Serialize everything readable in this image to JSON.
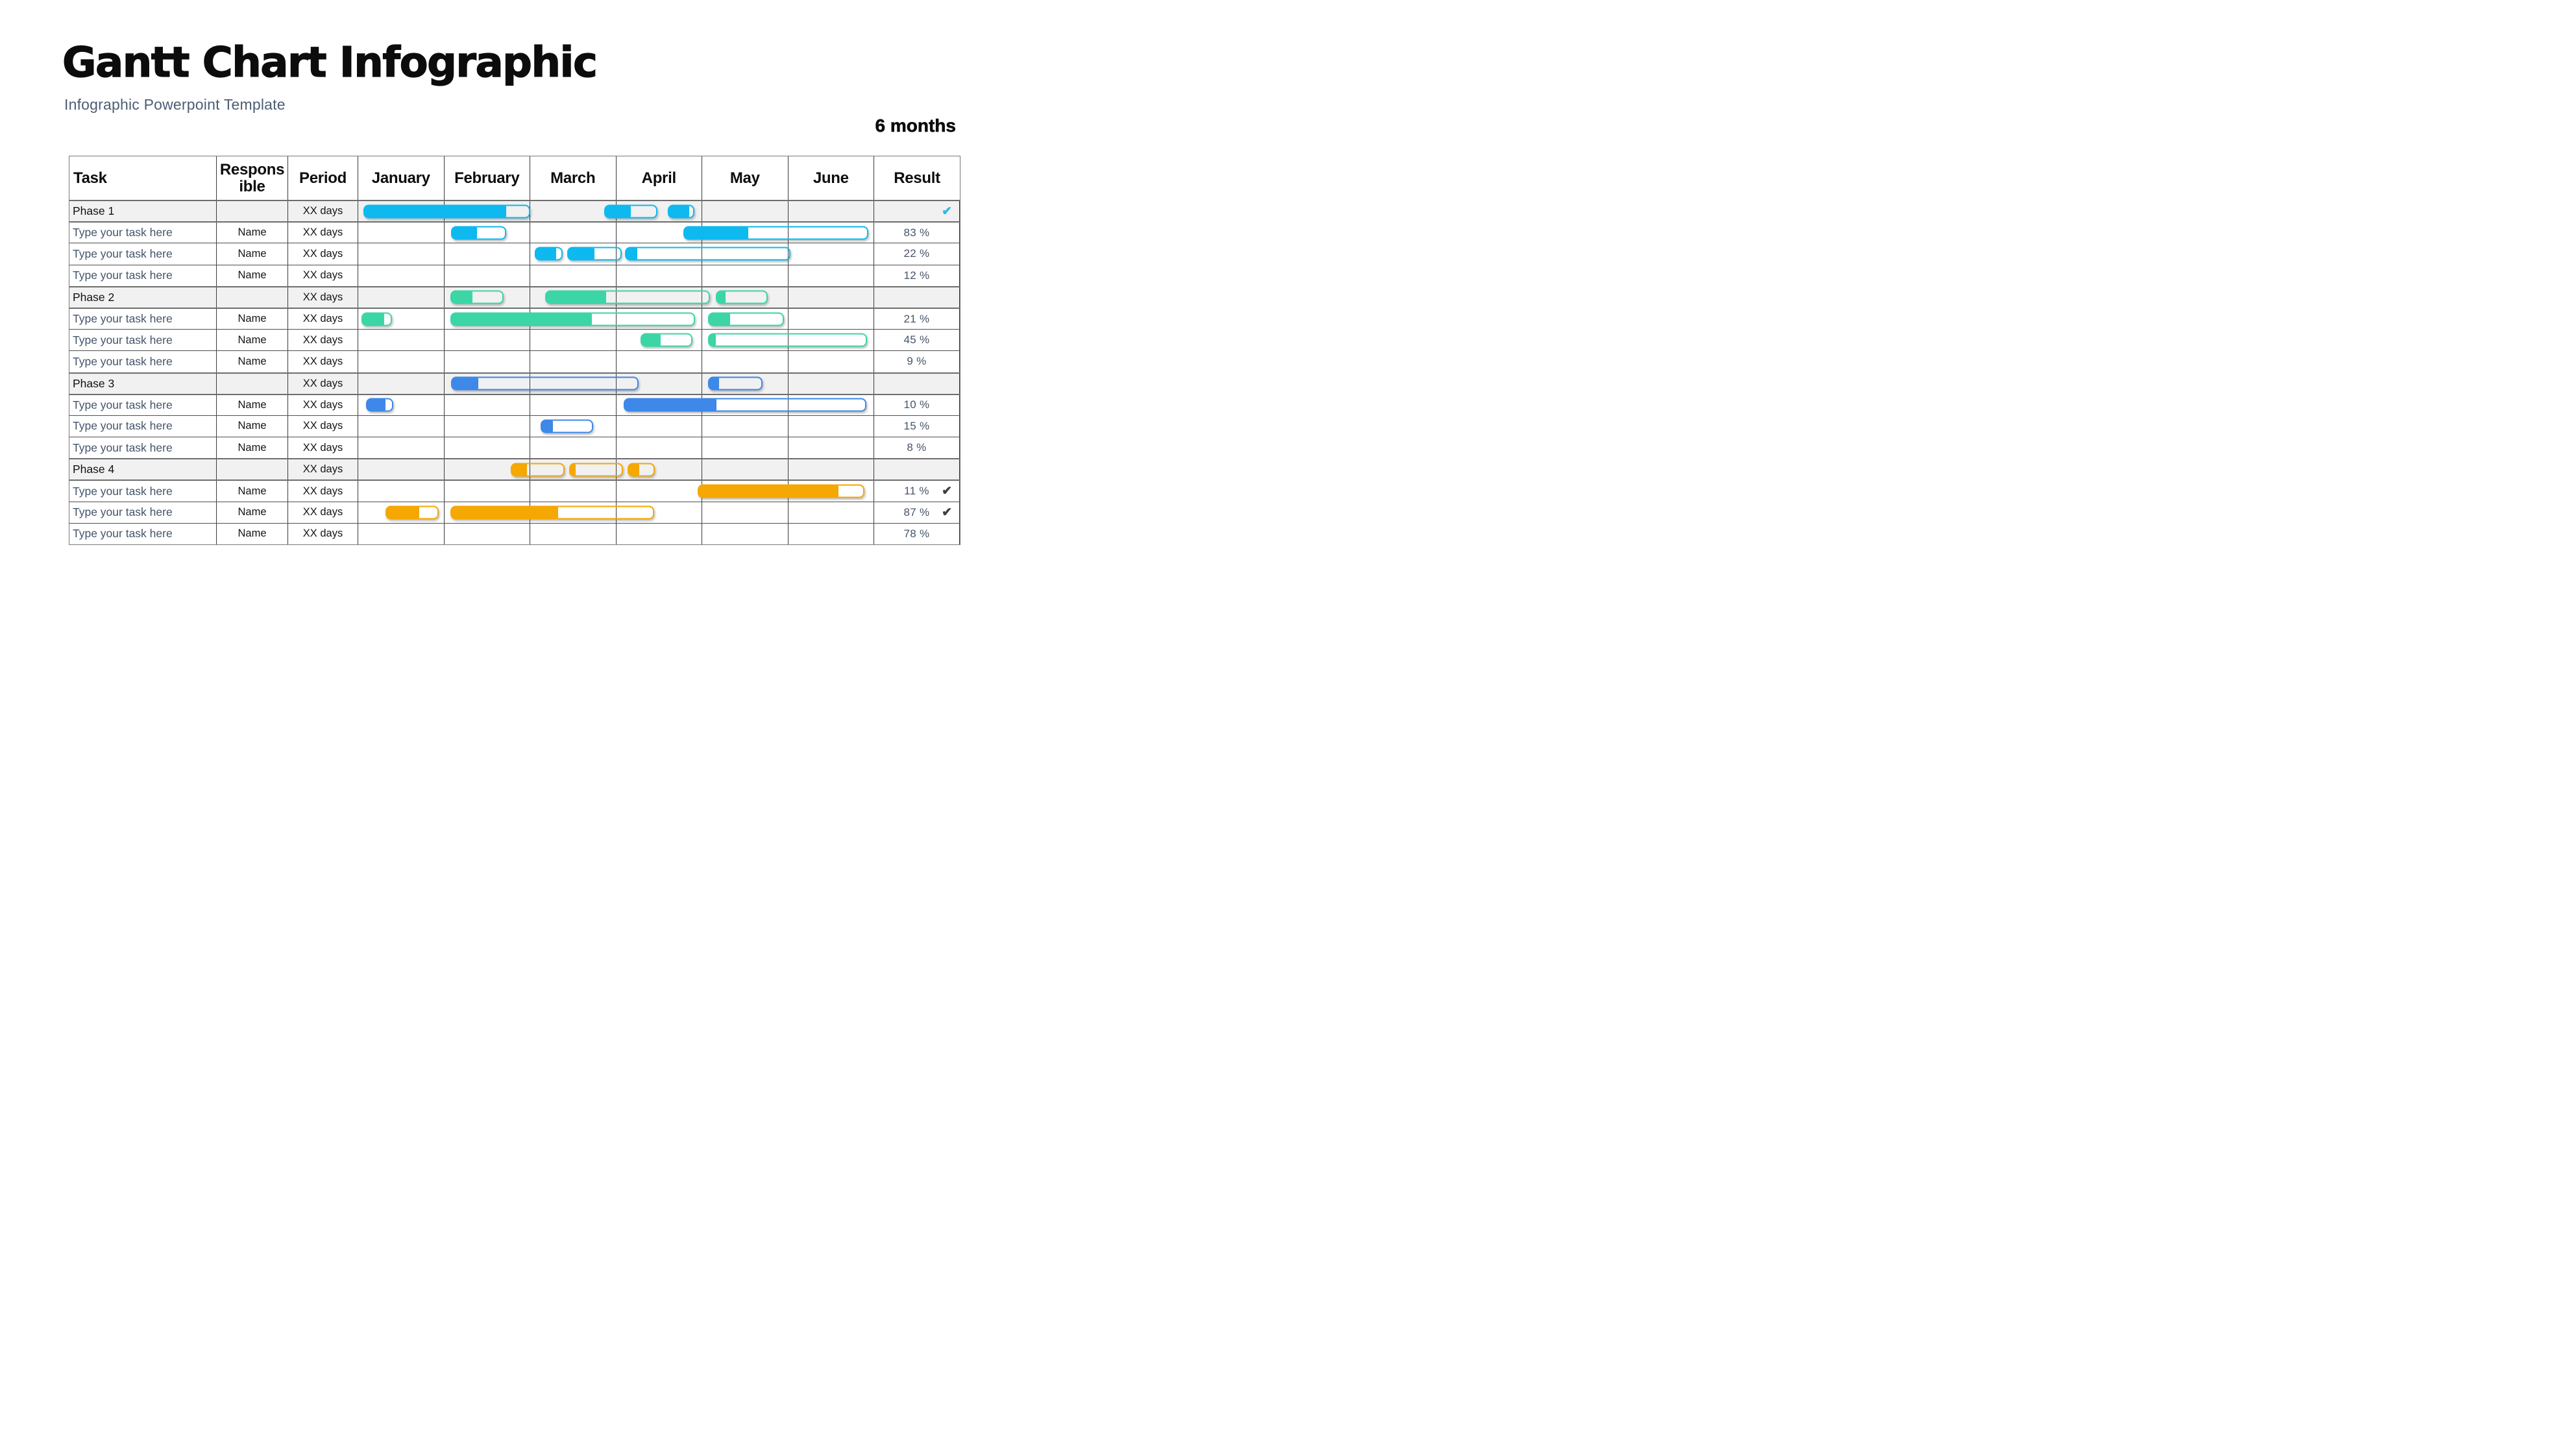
{
  "page": {
    "title": "Gantt Chart Infographic",
    "subtitle": "Infographic Powerpoint Template",
    "duration_label": "6 months"
  },
  "icons": {
    "check": "✔"
  },
  "palette": {
    "phase1": "#0db9ee",
    "phase2": "#3bd5a6",
    "phase3": "#3d88e8",
    "phase4": "#f5a702",
    "check_cyan": "#2eb8e6",
    "check_dark": "#3f3f3f",
    "phase_row_bg": "#f1f1f1",
    "task_text": "#44546a"
  },
  "chart_data": {
    "type": "gantt",
    "title": "Gantt Chart Infographic",
    "duration": "6 months",
    "columns": [
      "Task",
      "Responsible",
      "Period",
      "January",
      "February",
      "March",
      "April",
      "May",
      "June",
      "Result"
    ],
    "months": [
      "January",
      "February",
      "March",
      "April",
      "May",
      "June"
    ],
    "x_axis_unit": "months",
    "x_range": [
      0,
      6
    ],
    "bar_note": "start/end are in months from January 1 (0-6); fill is completed fraction of the bar",
    "rows": [
      {
        "kind": "phase",
        "label": "Phase 1",
        "responsible": "",
        "period": "XX days",
        "color": "phase1",
        "result": "",
        "check": "cyan",
        "bars": [
          {
            "start": 0.06,
            "end": 2.0,
            "fill": 0.86
          },
          {
            "start": 2.86,
            "end": 3.48,
            "fill": 0.5
          },
          {
            "start": 3.6,
            "end": 3.91,
            "fill": 0.83
          }
        ]
      },
      {
        "kind": "task",
        "label": "Type your task here",
        "responsible": "Name",
        "period": "XX days",
        "color": "phase1",
        "result": "83 %",
        "check": null,
        "bars": [
          {
            "start": 1.08,
            "end": 1.72,
            "fill": 0.47
          },
          {
            "start": 3.78,
            "end": 5.93,
            "fill": 0.35
          }
        ]
      },
      {
        "kind": "task",
        "label": "Type your task here",
        "responsible": "Name",
        "period": "XX days",
        "color": "phase1",
        "result": "22 %",
        "check": null,
        "bars": [
          {
            "start": 2.05,
            "end": 2.38,
            "fill": 0.78
          },
          {
            "start": 2.43,
            "end": 3.06,
            "fill": 0.5
          },
          {
            "start": 3.1,
            "end": 5.03,
            "fill": 0.07
          }
        ]
      },
      {
        "kind": "task",
        "label": "Type your task here",
        "responsible": "Name",
        "period": "XX days",
        "color": "phase1",
        "result": "12 %",
        "check": null,
        "bars": []
      },
      {
        "kind": "phase",
        "label": "Phase 2",
        "responsible": "",
        "period": "XX days",
        "color": "phase2",
        "result": "",
        "check": null,
        "bars": [
          {
            "start": 1.07,
            "end": 1.69,
            "fill": 0.41
          },
          {
            "start": 2.17,
            "end": 4.09,
            "fill": 0.37
          },
          {
            "start": 4.16,
            "end": 4.76,
            "fill": 0.17
          }
        ]
      },
      {
        "kind": "task",
        "label": "Type your task here",
        "responsible": "Name",
        "period": "XX days",
        "color": "phase2",
        "result": "21 %",
        "check": null,
        "bars": [
          {
            "start": 0.04,
            "end": 0.39,
            "fill": 0.77
          },
          {
            "start": 1.07,
            "end": 3.92,
            "fill": 0.58
          },
          {
            "start": 4.07,
            "end": 4.95,
            "fill": 0.28
          }
        ]
      },
      {
        "kind": "task",
        "label": "Type your task here",
        "responsible": "Name",
        "period": "XX days",
        "color": "phase2",
        "result": "45 %",
        "check": null,
        "bars": [
          {
            "start": 3.28,
            "end": 3.89,
            "fill": 0.38
          },
          {
            "start": 4.07,
            "end": 5.92,
            "fill": 0.04
          }
        ]
      },
      {
        "kind": "task",
        "label": "Type your task here",
        "responsible": "Name",
        "period": "XX days",
        "color": "phase2",
        "result": "9 %",
        "check": null,
        "bars": []
      },
      {
        "kind": "phase",
        "label": "Phase 3",
        "responsible": "",
        "period": "XX days",
        "color": "phase3",
        "result": "",
        "check": null,
        "bars": [
          {
            "start": 1.08,
            "end": 3.26,
            "fill": 0.14
          },
          {
            "start": 4.07,
            "end": 4.7,
            "fill": 0.18
          }
        ]
      },
      {
        "kind": "task",
        "label": "Type your task here",
        "responsible": "Name",
        "period": "XX days",
        "color": "phase3",
        "result": "10 %",
        "check": null,
        "bars": [
          {
            "start": 0.09,
            "end": 0.41,
            "fill": 0.72
          },
          {
            "start": 3.09,
            "end": 5.91,
            "fill": 0.38
          }
        ]
      },
      {
        "kind": "task",
        "label": "Type your task here",
        "responsible": "Name",
        "period": "XX days",
        "color": "phase3",
        "result": "15 %",
        "check": null,
        "bars": [
          {
            "start": 2.12,
            "end": 2.73,
            "fill": 0.22
          }
        ]
      },
      {
        "kind": "task",
        "label": "Type your task here",
        "responsible": "Name",
        "period": "XX days",
        "color": "phase3",
        "result": "8 %",
        "check": null,
        "bars": []
      },
      {
        "kind": "phase",
        "label": "Phase 4",
        "responsible": "",
        "period": "XX days",
        "color": "phase4",
        "result": "",
        "check": null,
        "bars": [
          {
            "start": 1.77,
            "end": 2.4,
            "fill": 0.29
          },
          {
            "start": 2.45,
            "end": 3.08,
            "fill": 0.1
          },
          {
            "start": 3.13,
            "end": 3.45,
            "fill": 0.42
          }
        ]
      },
      {
        "kind": "task",
        "label": "Type your task here",
        "responsible": "Name",
        "period": "XX days",
        "color": "phase4",
        "result": "11 %",
        "check": "dark",
        "bars": [
          {
            "start": 3.95,
            "end": 5.89,
            "fill": 0.85
          }
        ]
      },
      {
        "kind": "task",
        "label": "Type your task here",
        "responsible": "Name",
        "period": "XX days",
        "color": "phase4",
        "result": "87 %",
        "check": "dark",
        "bars": [
          {
            "start": 0.32,
            "end": 0.94,
            "fill": 0.63
          },
          {
            "start": 1.07,
            "end": 3.44,
            "fill": 0.53
          }
        ]
      },
      {
        "kind": "task",
        "label": "Type your task here",
        "responsible": "Name",
        "period": "XX days",
        "color": "phase4",
        "result": "78 %",
        "check": null,
        "bars": []
      }
    ]
  }
}
